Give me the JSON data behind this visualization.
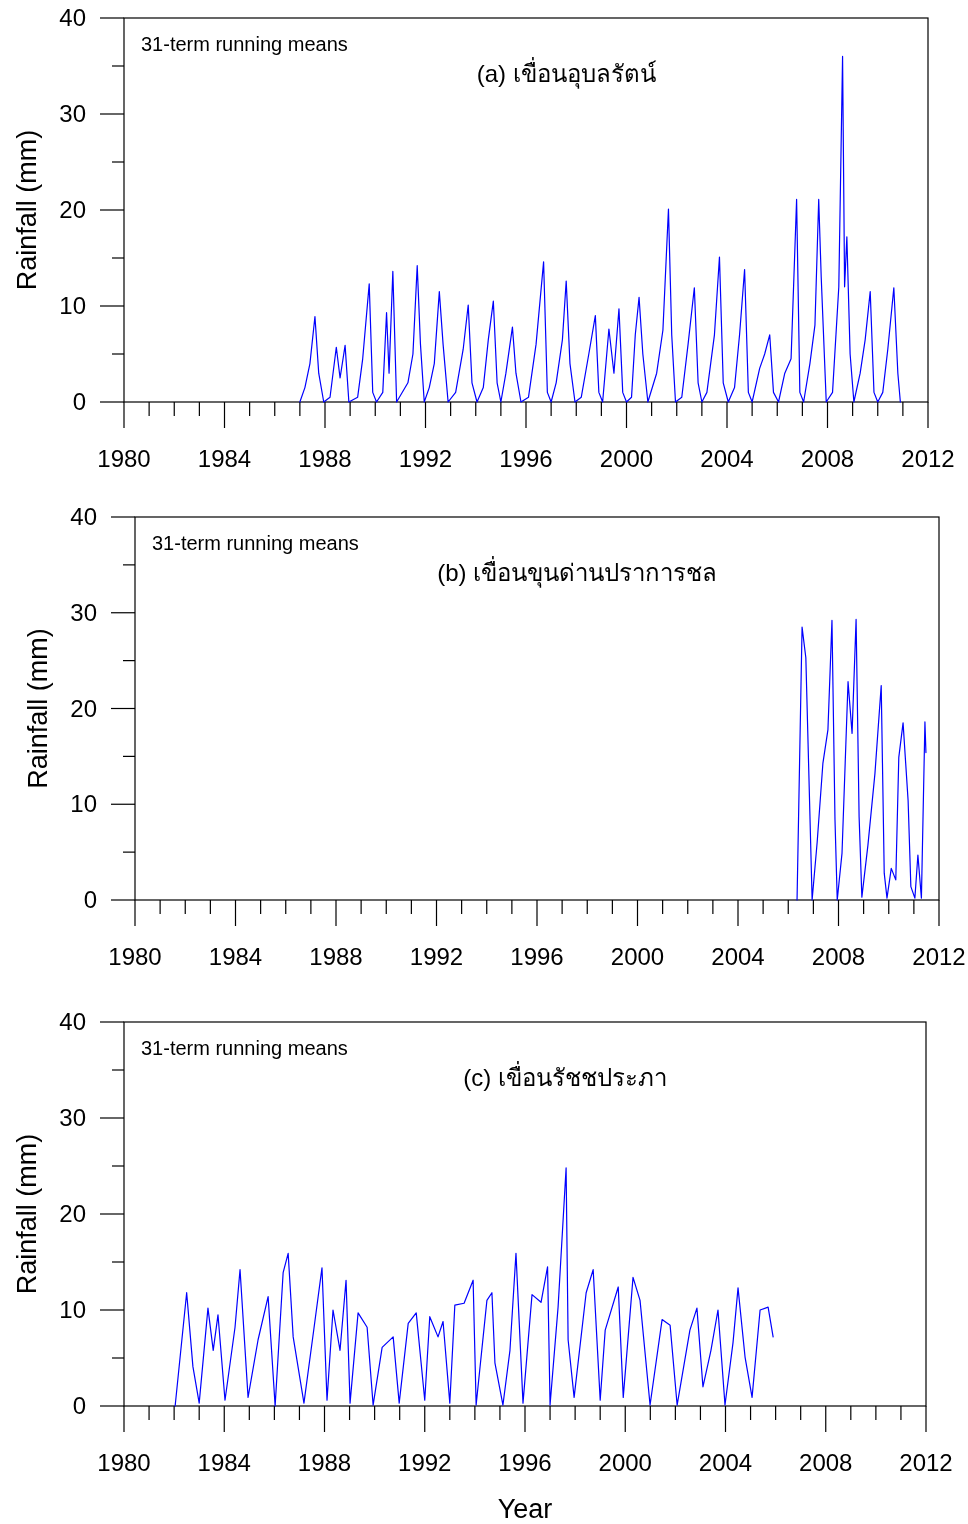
{
  "chart_data": [
    {
      "type": "line",
      "title": "(a) เขื่อนอุบลรัตน์",
      "ylabel": "Rainfall (mm)",
      "annotations": [
        "31-term running means"
      ],
      "color": "#0000ff",
      "line_style": "solid",
      "marker": "none",
      "grid": false,
      "xlim": [
        1980,
        2012
      ],
      "ylim": [
        0,
        40
      ],
      "xticks": [
        1980,
        {
          "value": 1981,
          "label": null
        },
        {
          "value": 1982,
          "label": null
        },
        {
          "value": 1983,
          "label": null
        },
        1984,
        {
          "value": 1985,
          "label": null
        },
        {
          "value": 1986,
          "label": null
        },
        {
          "value": 1987,
          "label": null
        },
        1988,
        {
          "value": 1989,
          "label": null
        },
        {
          "value": 1990,
          "label": null
        },
        {
          "value": 1991,
          "label": null
        },
        1992,
        {
          "value": 1993,
          "label": null
        },
        {
          "value": 1994,
          "label": null
        },
        {
          "value": 1995,
          "label": null
        },
        1996,
        {
          "value": 1997,
          "label": null
        },
        {
          "value": 1998,
          "label": null
        },
        {
          "value": 1999,
          "label": null
        },
        2000,
        {
          "value": 2001,
          "label": null
        },
        {
          "value": 2002,
          "label": null
        },
        {
          "value": 2003,
          "label": null
        },
        2004,
        {
          "value": 2005,
          "label": null
        },
        {
          "value": 2006,
          "label": null
        },
        {
          "value": 2007,
          "label": null
        },
        2008,
        {
          "value": 2009,
          "label": null
        },
        {
          "value": 2010,
          "label": null
        },
        {
          "value": 2011,
          "label": null
        },
        2012
      ],
      "yticks": [
        0,
        {
          "value": 5,
          "label": null
        },
        10,
        {
          "value": 15,
          "label": null
        },
        20,
        {
          "value": 25,
          "label": null
        },
        30,
        {
          "value": 35,
          "label": null
        },
        40
      ],
      "x": [
        1987.0,
        1987.2,
        1987.4,
        1987.6,
        1987.75,
        1987.95,
        1988.2,
        1988.45,
        1988.6,
        1988.8,
        1988.95,
        1989.3,
        1989.5,
        1989.76,
        1989.9,
        1990.05,
        1990.3,
        1990.45,
        1990.55,
        1990.7,
        1990.85,
        1991.3,
        1991.5,
        1991.67,
        1991.8,
        1991.95,
        1992.15,
        1992.35,
        1992.55,
        1992.7,
        1992.9,
        1993.2,
        1993.5,
        1993.7,
        1993.85,
        1994.05,
        1994.3,
        1994.5,
        1994.7,
        1994.85,
        1995.0,
        1995.2,
        1995.46,
        1995.6,
        1995.8,
        1996.1,
        1996.4,
        1996.7,
        1996.85,
        1997.0,
        1997.2,
        1997.45,
        1997.6,
        1997.75,
        1997.95,
        1998.2,
        1998.5,
        1998.76,
        1998.9,
        1999.05,
        1999.3,
        1999.5,
        1999.7,
        1999.85,
        2000.0,
        2000.2,
        2000.35,
        2000.5,
        2000.65,
        2000.85,
        2001.2,
        2001.45,
        2001.67,
        2001.8,
        2001.95,
        2002.2,
        2002.45,
        2002.7,
        2002.85,
        2003.0,
        2003.2,
        2003.5,
        2003.7,
        2003.85,
        2004.05,
        2004.3,
        2004.5,
        2004.7,
        2004.85,
        2005.0,
        2005.3,
        2005.5,
        2005.7,
        2005.85,
        2006.05,
        2006.3,
        2006.55,
        2006.77,
        2006.9,
        2007.05,
        2007.3,
        2007.5,
        2007.65,
        2007.75,
        2007.95,
        2008.2,
        2008.45,
        2008.6,
        2008.68,
        2008.77,
        2008.9,
        2009.05,
        2009.3,
        2009.5,
        2009.7,
        2009.85,
        2010.0,
        2010.2,
        2010.4,
        2010.64,
        2010.8,
        2010.9
      ],
      "values": [
        0,
        1.5,
        4,
        8.9,
        3,
        0,
        0.5,
        5.7,
        2.5,
        5.9,
        0,
        0.5,
        4.5,
        12.3,
        1,
        0,
        1,
        9.3,
        3,
        13.6,
        0,
        2,
        5,
        14.2,
        6,
        0,
        1.5,
        4,
        11.5,
        6,
        0,
        1,
        5.5,
        10.1,
        2,
        0,
        1.5,
        6.5,
        10.5,
        2,
        0,
        3,
        7.8,
        3,
        0,
        0.5,
        6,
        14.6,
        1,
        0,
        2,
        6.5,
        12.6,
        4,
        0,
        0.5,
        5,
        9,
        1,
        0,
        7.6,
        3,
        9.7,
        1,
        0,
        0.5,
        7,
        10.9,
        5,
        0,
        3,
        7.5,
        20.1,
        7,
        0,
        0.5,
        6,
        11.9,
        2,
        0,
        1,
        7,
        15.1,
        2,
        0,
        1.5,
        7,
        13.8,
        1,
        0,
        3.5,
        5,
        7,
        1,
        0,
        3,
        4.5,
        21.1,
        1,
        0,
        4,
        8,
        21.1,
        13,
        0,
        1,
        12,
        36,
        12,
        17.2,
        5,
        0,
        3,
        6.5,
        11.5,
        1,
        0,
        1,
        5.5,
        11.9,
        3,
        0
      ]
    },
    {
      "type": "line",
      "title": "(b) เขื่อนขุนด่านปราการชล",
      "ylabel": "Rainfall (mm)",
      "annotations": [
        "31-term running means"
      ],
      "color": "#0000ff",
      "line_style": "solid",
      "marker": "none",
      "grid": false,
      "xlim": [
        1980,
        2012
      ],
      "ylim": [
        0,
        40
      ],
      "xticks": [
        1980,
        {
          "value": 1981,
          "label": null
        },
        {
          "value": 1982,
          "label": null
        },
        {
          "value": 1983,
          "label": null
        },
        1984,
        {
          "value": 1985,
          "label": null
        },
        {
          "value": 1986,
          "label": null
        },
        {
          "value": 1987,
          "label": null
        },
        1988,
        {
          "value": 1989,
          "label": null
        },
        {
          "value": 1990,
          "label": null
        },
        {
          "value": 1991,
          "label": null
        },
        1992,
        {
          "value": 1993,
          "label": null
        },
        {
          "value": 1994,
          "label": null
        },
        {
          "value": 1995,
          "label": null
        },
        1996,
        {
          "value": 1997,
          "label": null
        },
        {
          "value": 1998,
          "label": null
        },
        {
          "value": 1999,
          "label": null
        },
        2000,
        {
          "value": 2001,
          "label": null
        },
        {
          "value": 2002,
          "label": null
        },
        {
          "value": 2003,
          "label": null
        },
        2004,
        {
          "value": 2005,
          "label": null
        },
        {
          "value": 2006,
          "label": null
        },
        {
          "value": 2007,
          "label": null
        },
        2008,
        {
          "value": 2009,
          "label": null
        },
        {
          "value": 2010,
          "label": null
        },
        {
          "value": 2011,
          "label": null
        },
        2012
      ],
      "yticks": [
        0,
        {
          "value": 5,
          "label": null
        },
        10,
        {
          "value": 15,
          "label": null
        },
        20,
        {
          "value": 25,
          "label": null
        },
        30,
        {
          "value": 35,
          "label": null
        },
        40
      ],
      "x": [
        2006.35,
        2006.55,
        2006.7,
        2006.95,
        2007.15,
        2007.38,
        2007.58,
        2007.74,
        2007.86,
        2007.95,
        2008.14,
        2008.38,
        2008.54,
        2008.7,
        2008.82,
        2008.93,
        2009.17,
        2009.45,
        2009.7,
        2009.82,
        2009.93,
        2010.1,
        2010.28,
        2010.4,
        2010.57,
        2010.77,
        2010.88,
        2011.04,
        2011.16,
        2011.3,
        2011.44,
        2011.48
      ],
      "values": [
        0,
        28.5,
        25.3,
        0,
        6,
        14.3,
        17.8,
        29.2,
        8.4,
        0,
        4.9,
        22.8,
        17.4,
        29.3,
        8.7,
        0.3,
        5.7,
        13.2,
        22.4,
        2.8,
        0.2,
        3.3,
        2.1,
        14.9,
        18.5,
        10.4,
        1.4,
        0.2,
        4.7,
        0.2,
        18.6,
        15.4
      ]
    },
    {
      "type": "line",
      "title": "(c) เขื่อนรัชชประภา",
      "ylabel": "Rainfall (mm)",
      "xlabel": "Year",
      "annotations": [
        "31-term running means"
      ],
      "color": "#0000ff",
      "line_style": "solid",
      "marker": "none",
      "grid": false,
      "xlim": [
        1980,
        2012
      ],
      "ylim": [
        0,
        40
      ],
      "xticks": [
        1980,
        {
          "value": 1981,
          "label": null
        },
        {
          "value": 1982,
          "label": null
        },
        {
          "value": 1983,
          "label": null
        },
        1984,
        {
          "value": 1985,
          "label": null
        },
        {
          "value": 1986,
          "label": null
        },
        {
          "value": 1987,
          "label": null
        },
        1988,
        {
          "value": 1989,
          "label": null
        },
        {
          "value": 1990,
          "label": null
        },
        {
          "value": 1991,
          "label": null
        },
        1992,
        {
          "value": 1993,
          "label": null
        },
        {
          "value": 1994,
          "label": null
        },
        {
          "value": 1995,
          "label": null
        },
        1996,
        {
          "value": 1997,
          "label": null
        },
        {
          "value": 1998,
          "label": null
        },
        {
          "value": 1999,
          "label": null
        },
        2000,
        {
          "value": 2001,
          "label": null
        },
        {
          "value": 2002,
          "label": null
        },
        {
          "value": 2003,
          "label": null
        },
        2004,
        {
          "value": 2005,
          "label": null
        },
        {
          "value": 2006,
          "label": null
        },
        {
          "value": 2007,
          "label": null
        },
        2008,
        {
          "value": 2009,
          "label": null
        },
        {
          "value": 2010,
          "label": null
        },
        {
          "value": 2011,
          "label": null
        },
        2012
      ],
      "yticks": [
        0,
        {
          "value": 5,
          "label": null
        },
        10,
        {
          "value": 15,
          "label": null
        },
        20,
        {
          "value": 25,
          "label": null
        },
        30,
        {
          "value": 35,
          "label": null
        },
        40
      ],
      "x": [
        1982.04,
        1982.5,
        1982.75,
        1983.0,
        1983.35,
        1983.56,
        1983.75,
        1984.03,
        1984.43,
        1984.63,
        1984.95,
        1985.35,
        1985.75,
        1986.03,
        1986.35,
        1986.55,
        1986.75,
        1987.18,
        1987.58,
        1987.9,
        1988.1,
        1988.34,
        1988.62,
        1988.86,
        1989.02,
        1989.34,
        1989.7,
        1989.94,
        1990.3,
        1990.74,
        1990.98,
        1991.34,
        1991.66,
        1992.0,
        1992.2,
        1992.53,
        1992.73,
        1993.0,
        1993.2,
        1993.57,
        1993.93,
        1994.05,
        1994.48,
        1994.68,
        1994.8,
        1995.12,
        1995.4,
        1995.64,
        1995.92,
        1996.28,
        1996.64,
        1996.9,
        1997.0,
        1997.32,
        1997.64,
        1997.72,
        1997.96,
        1998.44,
        1998.72,
        1999.0,
        1999.2,
        1999.72,
        1999.92,
        2000.31,
        2000.59,
        2000.99,
        2001.47,
        2001.79,
        2002.07,
        2002.58,
        2002.86,
        2003.1,
        2003.42,
        2003.7,
        2003.98,
        2004.3,
        2004.5,
        2004.78,
        2005.06,
        2005.38,
        2005.7,
        2005.9
      ],
      "values": [
        0,
        11.8,
        4.1,
        0.3,
        10.2,
        5.8,
        9.5,
        0.6,
        8.2,
        14.2,
        0.9,
        6.9,
        11.4,
        0,
        13.9,
        15.9,
        7.2,
        0.3,
        8.1,
        14.4,
        0.6,
        10,
        5.8,
        13.1,
        0.3,
        9.7,
        8.2,
        0.1,
        6.1,
        7.2,
        0.3,
        8.6,
        9.7,
        0.6,
        9.3,
        7.2,
        8.8,
        0.3,
        10.5,
        10.7,
        13.1,
        0.1,
        11,
        11.8,
        4.5,
        0.1,
        5.8,
        15.9,
        0.3,
        11.6,
        10.8,
        14.5,
        0.1,
        10.3,
        24.8,
        6.9,
        0.9,
        11.8,
        14.2,
        0.6,
        7.9,
        12.4,
        0.9,
        13.4,
        11,
        0.1,
        9,
        8.4,
        0.1,
        7.9,
        10.2,
        2,
        5.8,
        10,
        0.1,
        6.6,
        12.3,
        5.1,
        0.9,
        10,
        10.3,
        7.2
      ]
    }
  ]
}
